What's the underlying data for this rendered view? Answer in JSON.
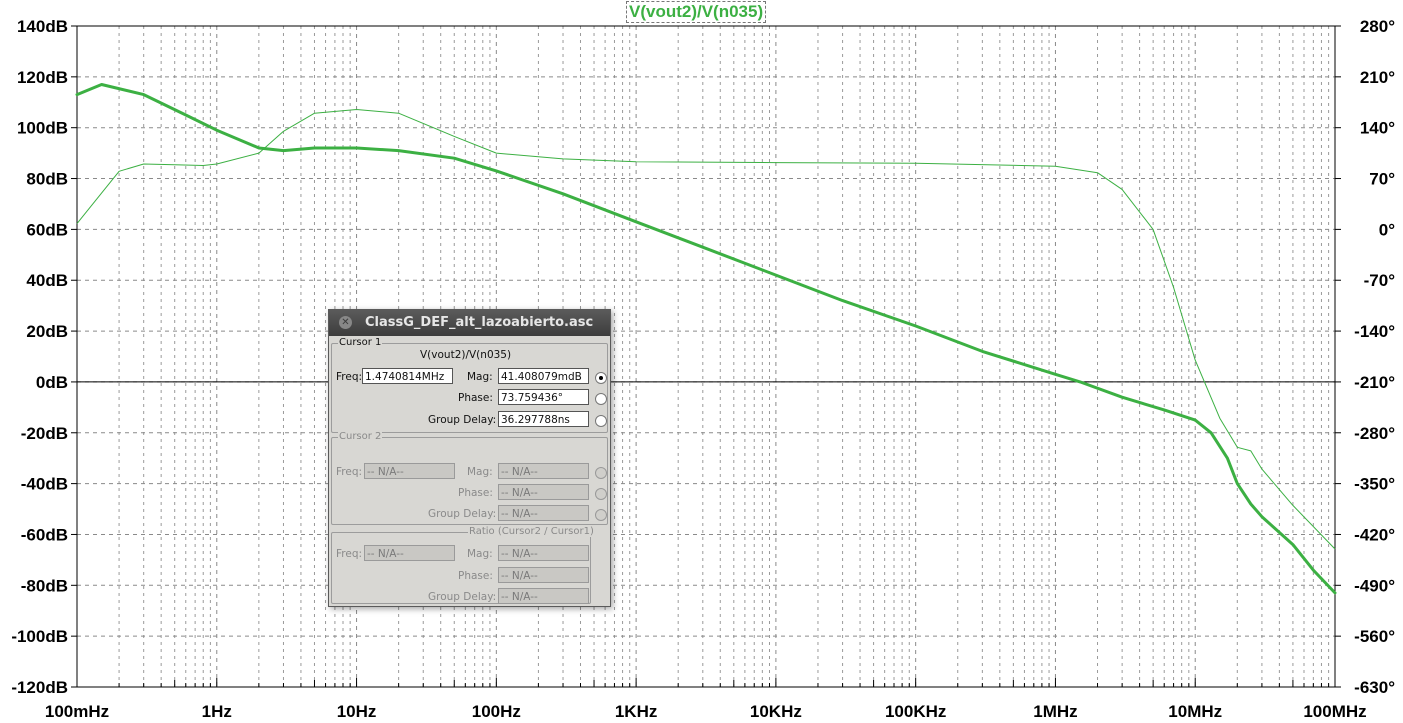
{
  "chart_data": {
    "type": "line",
    "title": "V(vout2)/V(n035)",
    "x_axis": {
      "scale": "log",
      "range_hz": [
        0.1,
        100000000
      ],
      "tick_labels": [
        "100mHz",
        "1Hz",
        "10Hz",
        "100Hz",
        "1KHz",
        "10KHz",
        "100KHz",
        "1MHz",
        "10MHz",
        "100MHz"
      ]
    },
    "y_left": {
      "unit": "dB",
      "range": [
        -120,
        140
      ],
      "tick_labels": [
        "140dB",
        "120dB",
        "100dB",
        "80dB",
        "60dB",
        "40dB",
        "20dB",
        "0dB",
        "-20dB",
        "-40dB",
        "-60dB",
        "-80dB",
        "-100dB",
        "-120dB"
      ]
    },
    "y_right": {
      "unit": "deg",
      "range": [
        -630,
        280
      ],
      "tick_labels": [
        "280°",
        "210°",
        "140°",
        "70°",
        "0°",
        "-70°",
        "-140°",
        "-210°",
        "-280°",
        "-350°",
        "-420°",
        "-490°",
        "-560°",
        "-630°"
      ]
    },
    "grid": true,
    "color": "#3cb043",
    "series": [
      {
        "name": "magnitude",
        "style": "bold",
        "x": [
          0.1,
          0.15,
          0.3,
          0.6,
          1,
          2,
          3,
          5,
          10,
          20,
          50,
          100,
          300,
          1000,
          3000,
          10000,
          30000,
          100000,
          300000,
          1000000,
          1500000,
          3000000,
          6000000,
          10000000,
          13000000,
          17000000,
          20000000,
          25000000,
          30000000,
          50000000,
          70000000,
          100000000
        ],
        "y": [
          113,
          117,
          113,
          105,
          99,
          92,
          91,
          92,
          92,
          91,
          88,
          83,
          74,
          63,
          53,
          42,
          32,
          22,
          12,
          3,
          0,
          -6,
          -11,
          -15,
          -20,
          -30,
          -40,
          -48,
          -53,
          -64,
          -74,
          -83
        ]
      },
      {
        "name": "phase",
        "style": "thin",
        "x": [
          0.1,
          0.2,
          0.3,
          0.5,
          0.8,
          1,
          2,
          3,
          5,
          10,
          20,
          50,
          100,
          300,
          1000,
          10000,
          100000,
          1000000,
          2000000,
          3000000,
          5000000,
          7000000,
          10000000,
          15000000,
          20000000,
          25000000,
          30000000,
          50000000,
          100000000
        ],
        "y": [
          8,
          80,
          90,
          89,
          88,
          90,
          105,
          135,
          160,
          165,
          160,
          128,
          105,
          97,
          93,
          92,
          91,
          87,
          78,
          55,
          0,
          -80,
          -180,
          -260,
          -300,
          -305,
          -330,
          -380,
          -440
        ]
      }
    ]
  },
  "trace_title": "V(vout2)/V(n035)",
  "dialog": {
    "title": "ClassG_DEF_alt_lazoabierto.asc",
    "cursor1": {
      "group_label": "Cursor 1",
      "trace": "V(vout2)/V(n035)",
      "freq_label": "Freq:",
      "freq_value": "1.4740814MHz",
      "mag_label": "Mag:",
      "mag_value": "41.408079mdB",
      "phase_label": "Phase:",
      "phase_value": "73.759436°",
      "delay_label": "Group Delay:",
      "delay_value": "36.297788ns"
    },
    "cursor2": {
      "group_label": "Cursor 2",
      "freq_label": "Freq:",
      "freq_value": "-- N/A--",
      "mag_label": "Mag:",
      "mag_value": "-- N/A--",
      "phase_label": "Phase:",
      "phase_value": "-- N/A--",
      "delay_label": "Group Delay:",
      "delay_value": "-- N/A--"
    },
    "ratio": {
      "group_label": "Ratio (Cursor2 / Cursor1)",
      "freq_label": "Freq:",
      "freq_value": "-- N/A--",
      "mag_label": "Mag:",
      "mag_value": "-- N/A--",
      "phase_label": "Phase:",
      "phase_value": "-- N/A--",
      "delay_label": "Group Delay:",
      "delay_value": "-- N/A--"
    }
  }
}
